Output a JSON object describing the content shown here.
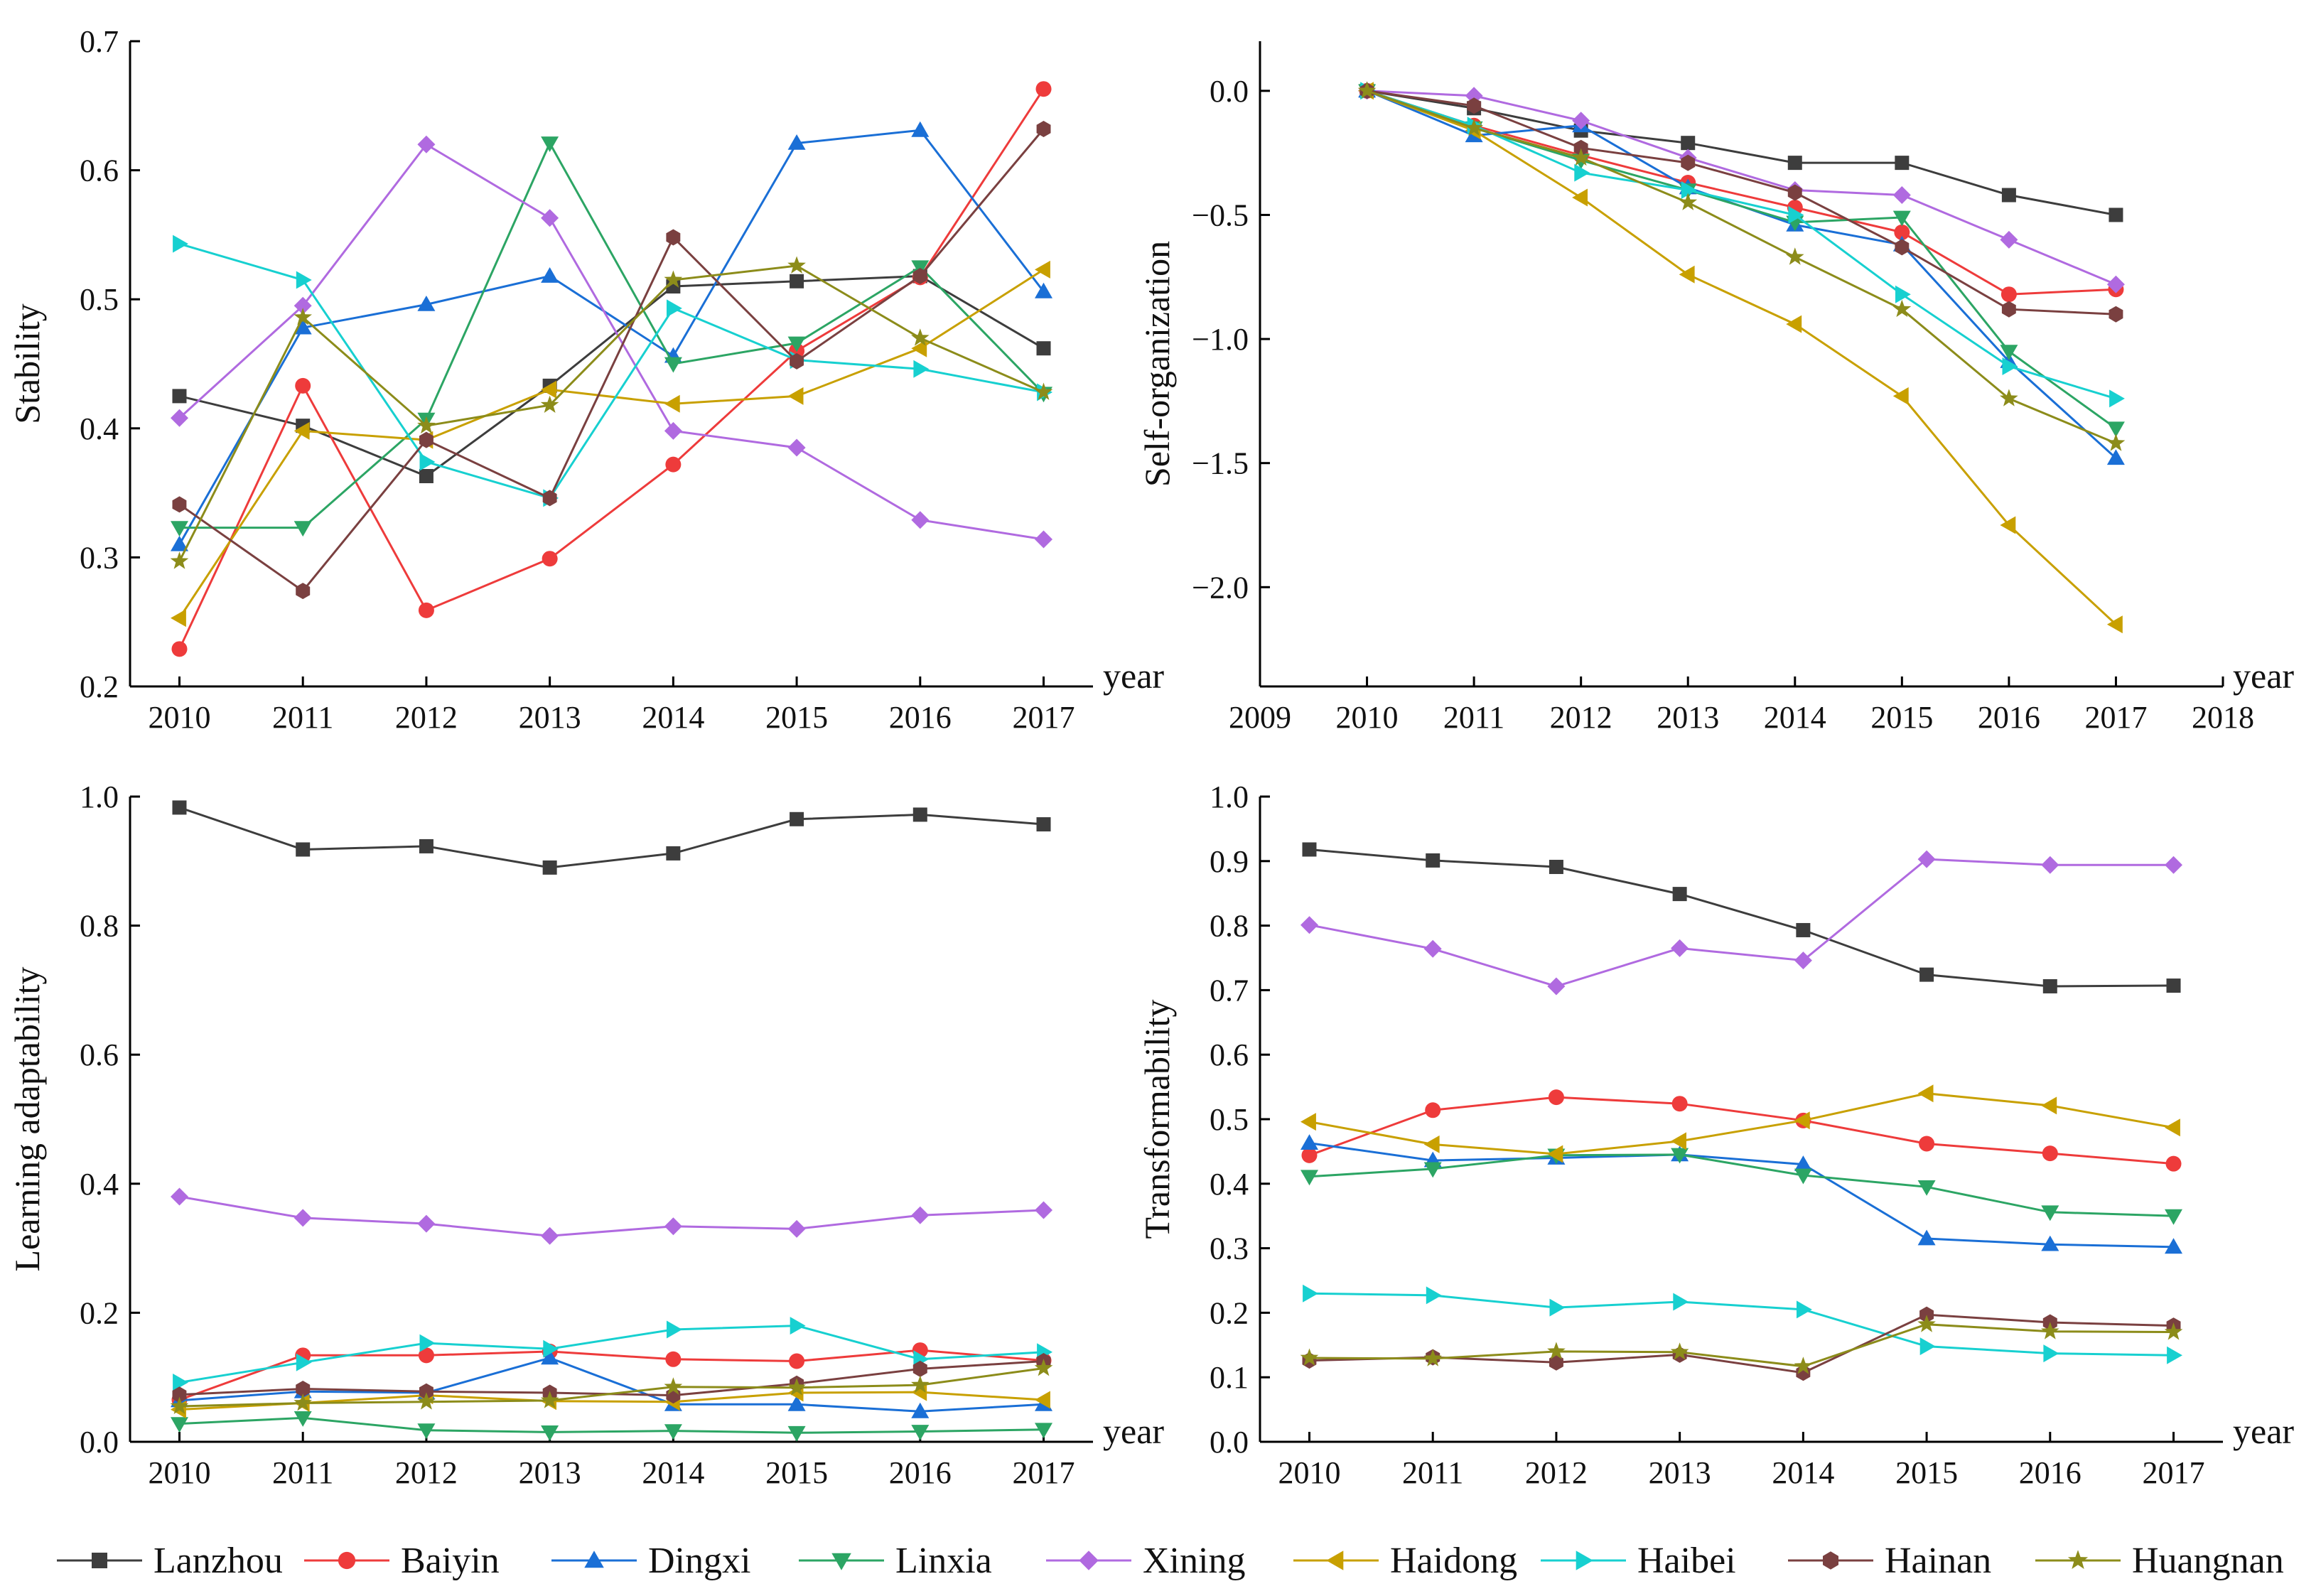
{
  "figure": {
    "legend": {
      "placement": "bottom",
      "entries": [
        "Lanzhou",
        "Baiyin",
        "Dingxi",
        "Linxia",
        "Xining",
        "Haidong",
        "Haibei",
        "Hainan",
        "Huangnan"
      ]
    }
  },
  "series_style": [
    {
      "name": "Lanzhou",
      "color": "#3d3d3d",
      "marker": "square"
    },
    {
      "name": "Baiyin",
      "color": "#ee3b3b",
      "marker": "circle"
    },
    {
      "name": "Dingxi",
      "color": "#1a6fd6",
      "marker": "triangle-up"
    },
    {
      "name": "Linxia",
      "color": "#2ca564",
      "marker": "triangle-down"
    },
    {
      "name": "Xining",
      "color": "#b06ae0",
      "marker": "diamond"
    },
    {
      "name": "Haidong",
      "color": "#c8a000",
      "marker": "triangle-left"
    },
    {
      "name": "Haibei",
      "color": "#17d0d0",
      "marker": "triangle-right"
    },
    {
      "name": "Hainan",
      "color": "#7a4040",
      "marker": "hexagon"
    },
    {
      "name": "Huangnan",
      "color": "#8c8c1a",
      "marker": "star"
    }
  ],
  "chart_data": [
    {
      "type": "line",
      "panel": "top-left",
      "ylabel": "Stability",
      "xlabel": "year",
      "xlim": [
        2009.6,
        2017.4
      ],
      "ylim": [
        0.2,
        0.7
      ],
      "x_ticks": [
        "2010",
        "2011",
        "2012",
        "2013",
        "2014",
        "2015",
        "2016",
        "2017"
      ],
      "y_ticks": [
        "0.2",
        "0.3",
        "0.4",
        "0.5",
        "0.6",
        "0.7"
      ],
      "x": [
        2010,
        2011,
        2012,
        2013,
        2014,
        2015,
        2016,
        2017
      ],
      "series": [
        {
          "name": "Lanzhou",
          "values": [
            0.425,
            0.402,
            0.363,
            0.433,
            0.51,
            0.514,
            0.518,
            0.462
          ]
        },
        {
          "name": "Baiyin",
          "values": [
            0.229,
            0.433,
            0.259,
            0.299,
            0.372,
            0.46,
            0.517,
            0.663
          ]
        },
        {
          "name": "Dingxi",
          "values": [
            0.31,
            0.478,
            0.496,
            0.518,
            0.456,
            0.621,
            0.631,
            0.506
          ]
        },
        {
          "name": "Linxia",
          "values": [
            0.323,
            0.323,
            0.407,
            0.621,
            0.45,
            0.466,
            0.525,
            0.427
          ]
        },
        {
          "name": "Xining",
          "values": [
            0.408,
            0.495,
            0.62,
            0.563,
            0.398,
            0.385,
            0.329,
            0.314
          ]
        },
        {
          "name": "Haidong",
          "values": [
            0.253,
            0.398,
            0.391,
            0.43,
            0.419,
            0.425,
            0.462,
            0.523
          ]
        },
        {
          "name": "Haibei",
          "values": [
            0.543,
            0.515,
            0.374,
            0.346,
            0.493,
            0.453,
            0.446,
            0.428
          ]
        },
        {
          "name": "Hainan",
          "values": [
            0.341,
            0.274,
            0.391,
            0.346,
            0.548,
            0.452,
            0.518,
            0.632
          ]
        },
        {
          "name": "Huangnan",
          "values": [
            0.297,
            0.486,
            0.402,
            0.418,
            0.515,
            0.526,
            0.47,
            0.428
          ]
        }
      ]
    },
    {
      "type": "line",
      "panel": "top-right",
      "ylabel": "Self-organization",
      "xlabel": "year",
      "xlim": [
        2009,
        2018
      ],
      "ylim": [
        -2.4,
        0.2
      ],
      "x_ticks": [
        "2009",
        "2010",
        "2011",
        "2012",
        "2013",
        "2014",
        "2015",
        "2016",
        "2017",
        "2018"
      ],
      "y_ticks": [
        "−2.0",
        "−1.5",
        "−1.0",
        "−0.5",
        "0.0"
      ],
      "x": [
        2010,
        2011,
        2012,
        2013,
        2014,
        2015,
        2016,
        2017
      ],
      "series": [
        {
          "name": "Lanzhou",
          "values": [
            0.0,
            -0.07,
            -0.16,
            -0.21,
            -0.29,
            -0.29,
            -0.42,
            -0.5
          ]
        },
        {
          "name": "Baiyin",
          "values": [
            0.0,
            -0.14,
            -0.26,
            -0.37,
            -0.47,
            -0.57,
            -0.82,
            -0.8
          ]
        },
        {
          "name": "Dingxi",
          "values": [
            0.0,
            -0.18,
            -0.14,
            -0.39,
            -0.54,
            -0.62,
            -1.09,
            -1.48
          ]
        },
        {
          "name": "Linxia",
          "values": [
            0.0,
            -0.15,
            -0.28,
            -0.4,
            -0.53,
            -0.51,
            -1.05,
            -1.36
          ]
        },
        {
          "name": "Xining",
          "values": [
            0.0,
            -0.02,
            -0.12,
            -0.27,
            -0.4,
            -0.42,
            -0.6,
            -0.78
          ]
        },
        {
          "name": "Haidong",
          "values": [
            0.0,
            -0.16,
            -0.43,
            -0.74,
            -0.94,
            -1.23,
            -1.75,
            -2.15
          ]
        },
        {
          "name": "Haibei",
          "values": [
            0.0,
            -0.14,
            -0.33,
            -0.4,
            -0.5,
            -0.82,
            -1.11,
            -1.24
          ]
        },
        {
          "name": "Hainan",
          "values": [
            0.0,
            -0.06,
            -0.23,
            -0.29,
            -0.41,
            -0.63,
            -0.88,
            -0.9
          ]
        },
        {
          "name": "Huangnan",
          "values": [
            0.0,
            -0.15,
            -0.27,
            -0.45,
            -0.67,
            -0.88,
            -1.24,
            -1.42
          ]
        }
      ]
    },
    {
      "type": "line",
      "panel": "bottom-left",
      "ylabel": "Learning adaptability",
      "xlabel": "year",
      "xlim": [
        2009.6,
        2017.4
      ],
      "ylim": [
        0.0,
        1.0
      ],
      "x_ticks": [
        "2010",
        "2011",
        "2012",
        "2013",
        "2014",
        "2015",
        "2016",
        "2017"
      ],
      "y_ticks": [
        "0.0",
        "0.2",
        "0.4",
        "0.6",
        "0.8",
        "1.0"
      ],
      "x": [
        2010,
        2011,
        2012,
        2013,
        2014,
        2015,
        2016,
        2017
      ],
      "series": [
        {
          "name": "Lanzhou",
          "values": [
            0.983,
            0.918,
            0.923,
            0.89,
            0.912,
            0.965,
            0.972,
            0.957
          ]
        },
        {
          "name": "Baiyin",
          "values": [
            0.065,
            0.134,
            0.134,
            0.14,
            0.128,
            0.125,
            0.142,
            0.126
          ]
        },
        {
          "name": "Dingxi",
          "values": [
            0.064,
            0.078,
            0.076,
            0.13,
            0.058,
            0.058,
            0.047,
            0.058
          ]
        },
        {
          "name": "Linxia",
          "values": [
            0.028,
            0.037,
            0.018,
            0.015,
            0.017,
            0.014,
            0.016,
            0.019
          ]
        },
        {
          "name": "Xining",
          "values": [
            0.38,
            0.347,
            0.338,
            0.319,
            0.334,
            0.33,
            0.351,
            0.359
          ]
        },
        {
          "name": "Haidong",
          "values": [
            0.05,
            0.06,
            0.072,
            0.063,
            0.062,
            0.076,
            0.077,
            0.065
          ]
        },
        {
          "name": "Haibei",
          "values": [
            0.092,
            0.123,
            0.153,
            0.144,
            0.174,
            0.18,
            0.128,
            0.139
          ]
        },
        {
          "name": "Hainan",
          "values": [
            0.073,
            0.082,
            0.078,
            0.076,
            0.072,
            0.09,
            0.113,
            0.125
          ]
        },
        {
          "name": "Huangnan",
          "values": [
            0.055,
            0.06,
            0.062,
            0.064,
            0.085,
            0.084,
            0.088,
            0.114
          ]
        }
      ]
    },
    {
      "type": "line",
      "panel": "bottom-right",
      "ylabel": "Transformability",
      "xlabel": "year",
      "xlim": [
        2009.6,
        2017.4
      ],
      "ylim": [
        0.0,
        1.0
      ],
      "x_ticks": [
        "2010",
        "2011",
        "2012",
        "2013",
        "2014",
        "2015",
        "2016",
        "2017"
      ],
      "y_ticks": [
        "0.0",
        "0.1",
        "0.2",
        "0.3",
        "0.4",
        "0.5",
        "0.6",
        "0.7",
        "0.8",
        "0.9",
        "1.0"
      ],
      "x": [
        2010,
        2011,
        2012,
        2013,
        2014,
        2015,
        2016,
        2017
      ],
      "series": [
        {
          "name": "Lanzhou",
          "values": [
            0.918,
            0.901,
            0.891,
            0.849,
            0.793,
            0.724,
            0.706,
            0.707
          ]
        },
        {
          "name": "Baiyin",
          "values": [
            0.444,
            0.514,
            0.534,
            0.524,
            0.498,
            0.462,
            0.447,
            0.431
          ]
        },
        {
          "name": "Dingxi",
          "values": [
            0.463,
            0.436,
            0.44,
            0.445,
            0.43,
            0.315,
            0.306,
            0.302
          ]
        },
        {
          "name": "Linxia",
          "values": [
            0.411,
            0.423,
            0.444,
            0.445,
            0.413,
            0.395,
            0.356,
            0.35
          ]
        },
        {
          "name": "Xining",
          "values": [
            0.801,
            0.764,
            0.706,
            0.765,
            0.746,
            0.903,
            0.894,
            0.894
          ]
        },
        {
          "name": "Haidong",
          "values": [
            0.496,
            0.461,
            0.446,
            0.466,
            0.498,
            0.54,
            0.521,
            0.487
          ]
        },
        {
          "name": "Haibei",
          "values": [
            0.23,
            0.227,
            0.208,
            0.217,
            0.205,
            0.148,
            0.137,
            0.134
          ]
        },
        {
          "name": "Hainan",
          "values": [
            0.126,
            0.131,
            0.123,
            0.135,
            0.107,
            0.197,
            0.185,
            0.18
          ]
        },
        {
          "name": "Huangnan",
          "values": [
            0.13,
            0.129,
            0.14,
            0.139,
            0.117,
            0.182,
            0.171,
            0.17
          ]
        }
      ]
    }
  ]
}
